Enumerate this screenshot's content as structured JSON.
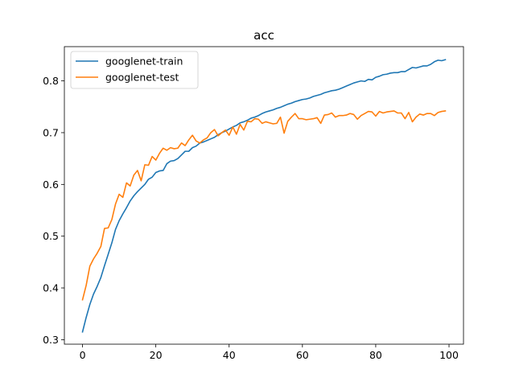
{
  "chart_data": {
    "type": "line",
    "title": "acc",
    "xlabel": "",
    "ylabel": "",
    "xlim": [
      -4.95,
      103.95
    ],
    "ylim": [
      0.2913,
      0.8662
    ],
    "xticks": [
      0,
      20,
      40,
      60,
      80,
      100
    ],
    "xtick_labels": [
      "0",
      "20",
      "40",
      "60",
      "80",
      "100"
    ],
    "yticks": [
      0.3,
      0.4,
      0.5,
      0.6,
      0.7,
      0.8
    ],
    "ytick_labels": [
      "0.3",
      "0.4",
      "0.5",
      "0.6",
      "0.7",
      "0.8"
    ],
    "legend_position": "top-left",
    "grid": false,
    "series": [
      {
        "name": "googlenet-train",
        "color": "#1f77b4",
        "x": [
          0,
          1,
          2,
          3,
          4,
          5,
          6,
          7,
          8,
          9,
          10,
          11,
          12,
          13,
          14,
          15,
          16,
          17,
          18,
          19,
          20,
          21,
          22,
          23,
          24,
          25,
          26,
          27,
          28,
          29,
          30,
          31,
          32,
          33,
          34,
          35,
          36,
          37,
          38,
          39,
          40,
          41,
          42,
          43,
          44,
          45,
          46,
          47,
          48,
          49,
          50,
          51,
          52,
          53,
          54,
          55,
          56,
          57,
          58,
          59,
          60,
          61,
          62,
          63,
          64,
          65,
          66,
          67,
          68,
          69,
          70,
          71,
          72,
          73,
          74,
          75,
          76,
          77,
          78,
          79,
          80,
          81,
          82,
          83,
          84,
          85,
          86,
          87,
          88,
          89,
          90,
          91,
          92,
          93,
          94,
          95,
          96,
          97,
          98,
          99
        ],
        "values": [
          0.315,
          0.343,
          0.368,
          0.388,
          0.403,
          0.42,
          0.443,
          0.465,
          0.487,
          0.513,
          0.53,
          0.543,
          0.555,
          0.568,
          0.578,
          0.586,
          0.593,
          0.6,
          0.61,
          0.614,
          0.623,
          0.626,
          0.627,
          0.64,
          0.645,
          0.646,
          0.65,
          0.657,
          0.664,
          0.664,
          0.671,
          0.674,
          0.68,
          0.682,
          0.685,
          0.688,
          0.691,
          0.696,
          0.7,
          0.703,
          0.707,
          0.711,
          0.714,
          0.719,
          0.721,
          0.724,
          0.728,
          0.73,
          0.733,
          0.737,
          0.74,
          0.742,
          0.744,
          0.747,
          0.749,
          0.752,
          0.755,
          0.757,
          0.76,
          0.762,
          0.764,
          0.765,
          0.767,
          0.77,
          0.772,
          0.774,
          0.777,
          0.779,
          0.781,
          0.782,
          0.784,
          0.787,
          0.79,
          0.793,
          0.796,
          0.798,
          0.8,
          0.799,
          0.803,
          0.802,
          0.807,
          0.809,
          0.812,
          0.813,
          0.815,
          0.816,
          0.816,
          0.818,
          0.818,
          0.822,
          0.826,
          0.825,
          0.827,
          0.829,
          0.829,
          0.832,
          0.837,
          0.84,
          0.839,
          0.841
        ]
      },
      {
        "name": "googlenet-test",
        "color": "#ff7f0e",
        "x": [
          0,
          1,
          2,
          3,
          4,
          5,
          6,
          7,
          8,
          9,
          10,
          11,
          12,
          13,
          14,
          15,
          16,
          17,
          18,
          19,
          20,
          21,
          22,
          23,
          24,
          25,
          26,
          27,
          28,
          29,
          30,
          31,
          32,
          33,
          34,
          35,
          36,
          37,
          38,
          39,
          40,
          41,
          42,
          43,
          44,
          45,
          46,
          47,
          48,
          49,
          50,
          51,
          52,
          53,
          54,
          55,
          56,
          57,
          58,
          59,
          60,
          61,
          62,
          63,
          64,
          65,
          66,
          67,
          68,
          69,
          70,
          71,
          72,
          73,
          74,
          75,
          76,
          77,
          78,
          79,
          80,
          81,
          82,
          83,
          84,
          85,
          86,
          87,
          88,
          89,
          90,
          91,
          92,
          93,
          94,
          95,
          96,
          97,
          98,
          99
        ],
        "values": [
          0.377,
          0.405,
          0.442,
          0.456,
          0.467,
          0.48,
          0.515,
          0.516,
          0.532,
          0.562,
          0.581,
          0.575,
          0.603,
          0.597,
          0.618,
          0.627,
          0.607,
          0.638,
          0.637,
          0.654,
          0.647,
          0.66,
          0.67,
          0.666,
          0.671,
          0.669,
          0.67,
          0.68,
          0.675,
          0.686,
          0.695,
          0.684,
          0.68,
          0.686,
          0.69,
          0.7,
          0.706,
          0.694,
          0.7,
          0.705,
          0.695,
          0.711,
          0.697,
          0.716,
          0.705,
          0.722,
          0.721,
          0.727,
          0.726,
          0.718,
          0.721,
          0.719,
          0.717,
          0.718,
          0.73,
          0.699,
          0.722,
          0.73,
          0.737,
          0.727,
          0.727,
          0.725,
          0.726,
          0.727,
          0.729,
          0.718,
          0.734,
          0.735,
          0.738,
          0.73,
          0.733,
          0.733,
          0.734,
          0.737,
          0.735,
          0.726,
          0.733,
          0.737,
          0.741,
          0.74,
          0.732,
          0.741,
          0.738,
          0.74,
          0.741,
          0.742,
          0.738,
          0.738,
          0.727,
          0.739,
          0.721,
          0.73,
          0.736,
          0.734,
          0.737,
          0.737,
          0.733,
          0.739,
          0.741,
          0.742
        ]
      }
    ]
  }
}
